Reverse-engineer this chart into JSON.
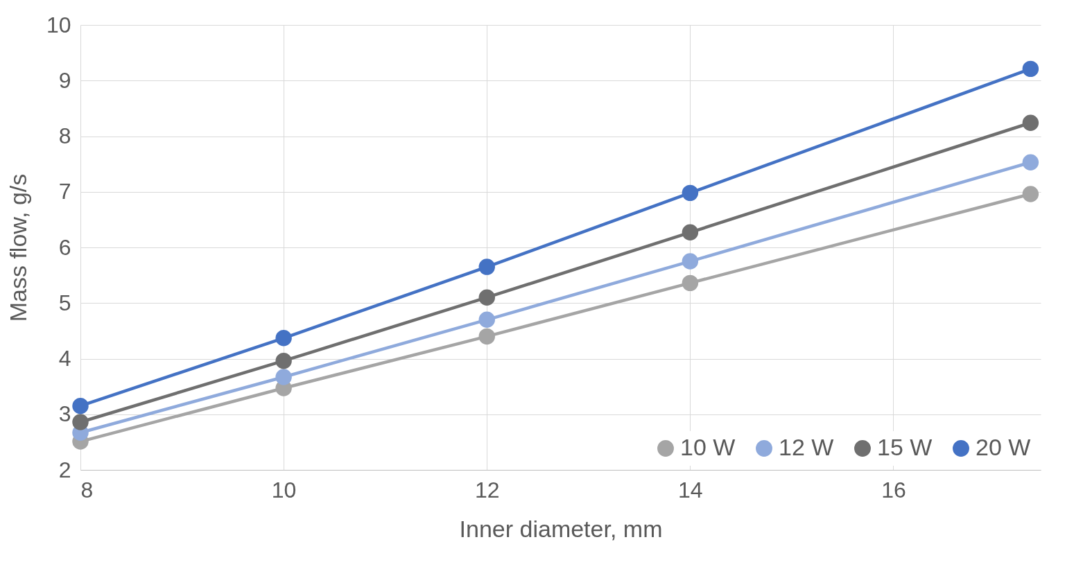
{
  "chart_data": {
    "type": "line",
    "xlabel": "Inner diameter, mm",
    "ylabel": "Mass flow, g/s",
    "x": [
      8,
      10,
      12,
      14,
      17.35
    ],
    "series": [
      {
        "name": "10 W",
        "color": "#a5a5a5",
        "values": [
          2.51,
          3.47,
          4.4,
          5.36,
          6.96
        ]
      },
      {
        "name": "12 W",
        "color": "#8faadc",
        "values": [
          2.67,
          3.67,
          4.7,
          5.75,
          7.53
        ]
      },
      {
        "name": "15 W",
        "color": "#6f6f6f",
        "values": [
          2.86,
          3.96,
          5.1,
          6.27,
          8.24
        ]
      },
      {
        "name": "20 W",
        "color": "#4472c4",
        "values": [
          3.15,
          4.37,
          5.65,
          6.98,
          9.21
        ]
      }
    ],
    "xlim": [
      8,
      17.45
    ],
    "xticks": [
      8,
      10,
      12,
      14,
      16
    ],
    "ylim": [
      2,
      10
    ],
    "yticks": [
      2,
      3,
      4,
      5,
      6,
      7,
      8,
      9,
      10
    ],
    "grid": true,
    "legend": "bottom right",
    "marker": "circle",
    "line_style": "solid"
  }
}
